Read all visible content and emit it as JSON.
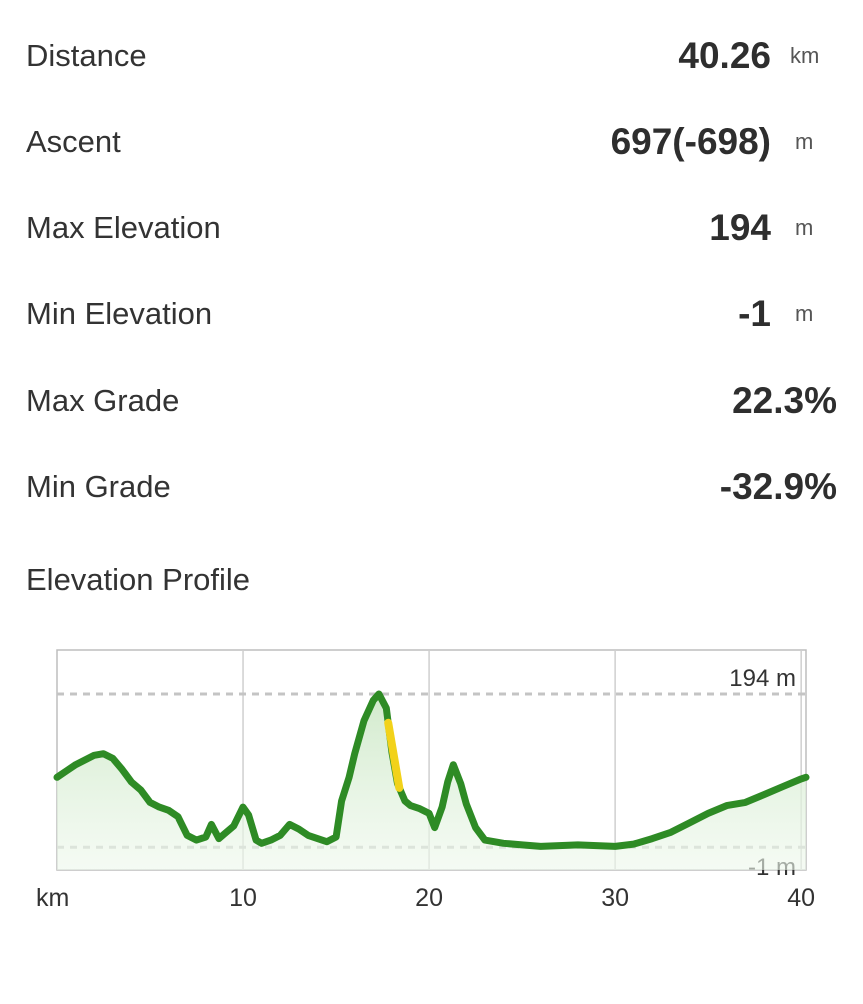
{
  "stats": [
    {
      "label": "Distance",
      "value": "40.26",
      "unit": "km"
    },
    {
      "label": "Ascent",
      "value": "697(-698)",
      "unit": "m"
    },
    {
      "label": "Max Elevation",
      "value": "194",
      "unit": "m"
    },
    {
      "label": "Min Elevation",
      "value": "-1",
      "unit": "m"
    },
    {
      "label": "Max Grade",
      "value": "22.3%",
      "unit": ""
    },
    {
      "label": "Min Grade",
      "value": "-32.9%",
      "unit": ""
    }
  ],
  "profile": {
    "title": "Elevation Profile"
  },
  "chart_data": {
    "type": "area",
    "xlabel": "km",
    "xlim": [
      0,
      40.26
    ],
    "ylim": [
      -30,
      250
    ],
    "x_ticks": [
      10,
      20,
      30,
      40
    ],
    "x_tick_labels": [
      "10",
      "20",
      "30",
      "40"
    ],
    "reference_lines": [
      {
        "value": 194,
        "label": "194 m"
      },
      {
        "value": -1,
        "label": "-1 m"
      }
    ],
    "line_color": "#2e8b25",
    "highlight_color": "#f2d21a",
    "fill_color": "#dff2da",
    "grid": true,
    "series": [
      {
        "x": [
          0,
          0.5,
          1,
          1.5,
          2,
          2.5,
          3,
          3.5,
          4,
          4.5,
          5,
          5.5,
          6,
          6.5,
          7,
          7.5,
          8,
          8.3,
          8.7,
          9,
          9.5,
          10,
          10.3,
          10.7,
          11,
          11.5,
          12,
          12.5,
          13,
          13.5,
          14,
          14.5,
          15,
          15.3,
          15.7,
          16,
          16.5,
          17,
          17.3,
          17.7,
          18,
          18.3,
          18.7,
          19,
          19.5,
          20,
          20.3,
          20.7,
          21,
          21.3,
          21.7,
          22,
          22.5,
          23,
          24,
          25,
          26,
          27,
          28,
          29,
          30,
          31,
          32,
          33,
          34,
          35,
          36,
          37,
          38,
          39,
          40,
          40.26
        ],
        "y": [
          88,
          96,
          104,
          110,
          116,
          118,
          112,
          98,
          82,
          72,
          56,
          50,
          46,
          38,
          14,
          8,
          12,
          28,
          10,
          16,
          26,
          50,
          40,
          8,
          4,
          8,
          14,
          28,
          22,
          14,
          10,
          6,
          12,
          58,
          88,
          118,
          160,
          186,
          194,
          176,
          120,
          80,
          58,
          52,
          48,
          42,
          24,
          50,
          82,
          104,
          80,
          54,
          24,
          8,
          4,
          2,
          0,
          1,
          2,
          1,
          0,
          3,
          10,
          18,
          30,
          42,
          52,
          56,
          66,
          76,
          86,
          88
        ],
        "highlight_range_km": [
          17.8,
          18.4
        ]
      }
    ]
  }
}
